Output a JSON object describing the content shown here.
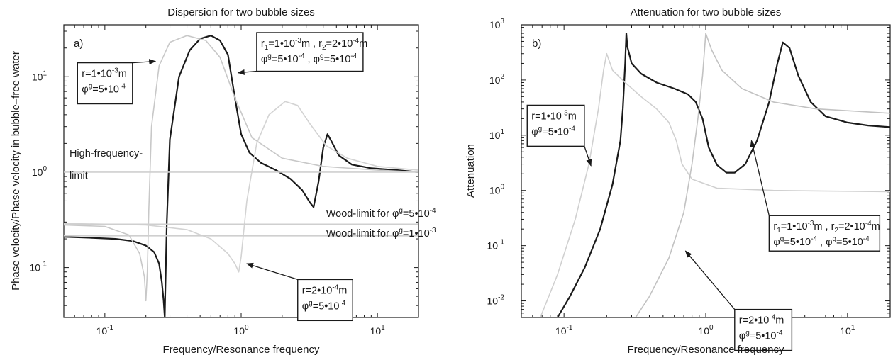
{
  "chart_data": [
    {
      "panel_label": "a)",
      "type": "line",
      "title": "Dispersion for two bubble sizes",
      "xlabel": "Frequency/Resonance frequency",
      "ylabel": "Phase velocity/Phase velocity in bubble–free water",
      "xscale": "log",
      "yscale": "log",
      "xlim": [
        0.05,
        20
      ],
      "ylim": [
        0.03,
        35
      ],
      "x_ticks": [
        {
          "v": 0.1,
          "b": "10",
          "e": "-1"
        },
        {
          "v": 1,
          "b": "10",
          "e": "0"
        },
        {
          "v": 10,
          "b": "10",
          "e": "1"
        }
      ],
      "y_ticks": [
        {
          "v": 0.1,
          "b": "10",
          "e": "-1"
        },
        {
          "v": 1,
          "b": "10",
          "e": "0"
        },
        {
          "v": 10,
          "b": "10",
          "e": "1"
        }
      ],
      "series": [
        {
          "color": "#1a1a1a",
          "points": [
            [
              0.05,
              0.21
            ],
            [
              0.08,
              0.205
            ],
            [
              0.12,
              0.2
            ],
            [
              0.16,
              0.19
            ],
            [
              0.2,
              0.17
            ],
            [
              0.23,
              0.145
            ],
            [
              0.25,
              0.11
            ],
            [
              0.262,
              0.07
            ],
            [
              0.27,
              0.045
            ],
            [
              0.275,
              0.03
            ],
            [
              0.277,
              0.05
            ],
            [
              0.285,
              0.3
            ],
            [
              0.3,
              2.2
            ],
            [
              0.35,
              10
            ],
            [
              0.42,
              19
            ],
            [
              0.5,
              25
            ],
            [
              0.6,
              27
            ],
            [
              0.7,
              24
            ],
            [
              0.8,
              17
            ],
            [
              0.9,
              6
            ],
            [
              1.0,
              2.5
            ],
            [
              1.15,
              1.6
            ],
            [
              1.4,
              1.25
            ],
            [
              1.8,
              1.05
            ],
            [
              2.3,
              0.85
            ],
            [
              2.8,
              0.65
            ],
            [
              3.2,
              0.48
            ],
            [
              3.4,
              0.43
            ],
            [
              3.7,
              0.8
            ],
            [
              4.0,
              1.8
            ],
            [
              4.3,
              2.5
            ],
            [
              4.6,
              2.1
            ],
            [
              5.2,
              1.5
            ],
            [
              6.5,
              1.2
            ],
            [
              9,
              1.1
            ],
            [
              14,
              1.05
            ],
            [
              20,
              1.0
            ]
          ]
        },
        {
          "color": "#c8c8c8",
          "points": [
            [
              0.05,
              0.28
            ],
            [
              0.1,
              0.27
            ],
            [
              0.15,
              0.22
            ],
            [
              0.18,
              0.14
            ],
            [
              0.195,
              0.08
            ],
            [
              0.2,
              0.045
            ],
            [
              0.205,
              0.09
            ],
            [
              0.21,
              0.4
            ],
            [
              0.22,
              3
            ],
            [
              0.25,
              13
            ],
            [
              0.3,
              23
            ],
            [
              0.4,
              27
            ],
            [
              0.55,
              24
            ],
            [
              0.7,
              16
            ],
            [
              0.9,
              6
            ],
            [
              1.2,
              2.3
            ],
            [
              2,
              1.4
            ],
            [
              4,
              1.15
            ],
            [
              10,
              1.05
            ],
            [
              20,
              1.0
            ]
          ]
        },
        {
          "color": "#d3d3d3",
          "points": [
            [
              0.05,
              0.29
            ],
            [
              0.2,
              0.28
            ],
            [
              0.4,
              0.25
            ],
            [
              0.6,
              0.2
            ],
            [
              0.8,
              0.14
            ],
            [
              0.9,
              0.11
            ],
            [
              0.96,
              0.09
            ],
            [
              1.0,
              0.13
            ],
            [
              1.1,
              0.5
            ],
            [
              1.3,
              2
            ],
            [
              1.6,
              4
            ],
            [
              2.1,
              5.5
            ],
            [
              2.6,
              5
            ],
            [
              3.2,
              3.2
            ],
            [
              4.2,
              1.9
            ],
            [
              6,
              1.4
            ],
            [
              10,
              1.15
            ],
            [
              20,
              1.05
            ]
          ]
        },
        {
          "color": "#cfcfcf",
          "points": [
            [
              0.05,
              1.0
            ],
            [
              20,
              1.0
            ]
          ]
        },
        {
          "color": "#cfcfcf",
          "points": [
            [
              0.05,
              0.285
            ],
            [
              20,
              0.285
            ]
          ]
        },
        {
          "color": "#cfcfcf",
          "points": [
            [
              0.05,
              0.215
            ],
            [
              20,
              0.215
            ]
          ]
        }
      ],
      "annotations": [
        {
          "text": "High-frequency-",
          "x": 0.055,
          "y": 1.45
        },
        {
          "text": "limit",
          "x": 0.055,
          "y": 0.85
        },
        {
          "text": "Wood-limit for φ",
          "sup": "g",
          "rest": "=5•10",
          "exp": "-4",
          "x": 4.2,
          "y": 0.34
        },
        {
          "text": "Wood-limit for φ",
          "sup": "g",
          "rest": "=1•10",
          "exp": "-3",
          "x": 4.2,
          "y": 0.21
        }
      ],
      "boxes": [
        {
          "lines": [
            [
              {
                "t": "r=1•10"
              },
              {
                "t": "-3",
                "sup": true
              },
              {
                "t": "m"
              }
            ],
            [
              {
                "t": "φ"
              },
              {
                "t": "g",
                "sup": true
              },
              {
                "t": "=5•10"
              },
              {
                "t": "-4",
                "sup": true
              }
            ]
          ],
          "x": 0.063,
          "y": 14,
          "w": 0.155,
          "h": 0.255,
          "arrow_to": [
            0.235,
            14.5
          ]
        },
        {
          "lines": [
            [
              {
                "t": "r"
              },
              {
                "t": "1",
                "sub": true
              },
              {
                "t": "=1•10"
              },
              {
                "t": "-3",
                "sup": true
              },
              {
                "t": "m , r"
              },
              {
                "t": "2",
                "sub": true
              },
              {
                "t": "=2•10"
              },
              {
                "t": "-4",
                "sup": true
              },
              {
                "t": "m"
              }
            ],
            [
              {
                "t": "φ"
              },
              {
                "t": "g",
                "sup": true
              },
              {
                "t": "=5•10"
              },
              {
                "t": "-4",
                "sup": true
              },
              {
                "t": "   , φ"
              },
              {
                "t": "g",
                "sup": true
              },
              {
                "t": "=5•10"
              },
              {
                "t": "-4",
                "sup": true
              }
            ]
          ],
          "x": 1.3,
          "y": 29,
          "w": 0.3,
          "h": 0.24,
          "arrow_to": [
            0.95,
            11
          ]
        },
        {
          "lines": [
            [
              {
                "t": "r=2•10"
              },
              {
                "t": "-4",
                "sup": true
              },
              {
                "t": "m"
              }
            ],
            [
              {
                "t": "φ"
              },
              {
                "t": "g",
                "sup": true
              },
              {
                "t": "=5•10"
              },
              {
                "t": "-4",
                "sup": true
              }
            ]
          ],
          "x": 2.6,
          "y": 0.075,
          "w": 0.155,
          "h": 0.255,
          "arrow_to": [
            1.1,
            0.11
          ]
        }
      ]
    },
    {
      "panel_label": "b)",
      "type": "line",
      "title": "Attenuation for two bubble sizes",
      "xlabel": "Frequency/Resonance frequency",
      "ylabel": "Attenuation",
      "xscale": "log",
      "yscale": "log",
      "xlim": [
        0.05,
        20
      ],
      "ylim": [
        0.005,
        1000
      ],
      "x_ticks": [
        {
          "v": 0.1,
          "b": "10",
          "e": "-1"
        },
        {
          "v": 1,
          "b": "10",
          "e": "0"
        },
        {
          "v": 10,
          "b": "10",
          "e": "1"
        }
      ],
      "y_ticks": [
        {
          "v": 0.01,
          "b": "10",
          "e": "-2"
        },
        {
          "v": 0.1,
          "b": "10",
          "e": "-1"
        },
        {
          "v": 1,
          "b": "10",
          "e": "0"
        },
        {
          "v": 10,
          "b": "10",
          "e": "1"
        },
        {
          "v": 100,
          "b": "10",
          "e": "2"
        },
        {
          "v": 1000,
          "b": "10",
          "e": "3"
        }
      ],
      "series": [
        {
          "color": "#1a1a1a",
          "points": [
            [
              0.09,
              0.005
            ],
            [
              0.11,
              0.012
            ],
            [
              0.14,
              0.04
            ],
            [
              0.18,
              0.2
            ],
            [
              0.22,
              1.3
            ],
            [
              0.25,
              8
            ],
            [
              0.26,
              30
            ],
            [
              0.27,
              200
            ],
            [
              0.275,
              700
            ],
            [
              0.28,
              400
            ],
            [
              0.3,
              200
            ],
            [
              0.35,
              130
            ],
            [
              0.45,
              90
            ],
            [
              0.6,
              70
            ],
            [
              0.75,
              55
            ],
            [
              0.85,
              40
            ],
            [
              0.95,
              20
            ],
            [
              1.05,
              6
            ],
            [
              1.2,
              2.9
            ],
            [
              1.4,
              2.1
            ],
            [
              1.6,
              2.1
            ],
            [
              1.9,
              3
            ],
            [
              2.3,
              8
            ],
            [
              2.8,
              40
            ],
            [
              3.2,
              200
            ],
            [
              3.5,
              480
            ],
            [
              3.9,
              380
            ],
            [
              4.5,
              120
            ],
            [
              5.5,
              40
            ],
            [
              7,
              22
            ],
            [
              10,
              17
            ],
            [
              14,
              15
            ],
            [
              20,
              14
            ]
          ]
        },
        {
          "color": "#d0d0d0",
          "points": [
            [
              0.068,
              0.005
            ],
            [
              0.09,
              0.03
            ],
            [
              0.12,
              0.3
            ],
            [
              0.15,
              3
            ],
            [
              0.175,
              30
            ],
            [
              0.19,
              150
            ],
            [
              0.2,
              300
            ],
            [
              0.22,
              150
            ],
            [
              0.27,
              90
            ],
            [
              0.35,
              50
            ],
            [
              0.45,
              30
            ],
            [
              0.55,
              17
            ],
            [
              0.62,
              8
            ],
            [
              0.68,
              3
            ],
            [
              0.8,
              1.6
            ],
            [
              1.2,
              1.1
            ],
            [
              3,
              1.0
            ],
            [
              20,
              0.95
            ]
          ]
        },
        {
          "color": "#c2c2c2",
          "points": [
            [
              0.32,
              0.005
            ],
            [
              0.4,
              0.012
            ],
            [
              0.55,
              0.06
            ],
            [
              0.7,
              0.4
            ],
            [
              0.8,
              3
            ],
            [
              0.88,
              20
            ],
            [
              0.95,
              120
            ],
            [
              1.0,
              700
            ],
            [
              1.1,
              350
            ],
            [
              1.3,
              150
            ],
            [
              1.8,
              70
            ],
            [
              3,
              40
            ],
            [
              6,
              30
            ],
            [
              20,
              25
            ]
          ]
        }
      ],
      "annotations": [],
      "boxes": [
        {
          "lines": [
            [
              {
                "t": "r=1•10"
              },
              {
                "t": "-3",
                "sup": true
              },
              {
                "t": "m"
              }
            ],
            [
              {
                "t": "φ"
              },
              {
                "t": "g",
                "sup": true
              },
              {
                "t": "=5•10"
              },
              {
                "t": "-4",
                "sup": true
              }
            ]
          ],
          "x": 0.055,
          "y": 35,
          "w": 0.155,
          "h": 0.255,
          "arrow_to": [
            0.155,
            2.8
          ]
        },
        {
          "lines": [
            [
              {
                "t": "r"
              },
              {
                "t": "1",
                "sub": true
              },
              {
                "t": "=1•10"
              },
              {
                "t": "-3",
                "sup": true
              },
              {
                "t": "m , r"
              },
              {
                "t": "2",
                "sub": true
              },
              {
                "t": "=2•10"
              },
              {
                "t": "-4",
                "sup": true
              },
              {
                "t": "m"
              }
            ],
            [
              {
                "t": "φ"
              },
              {
                "t": "g",
                "sup": true
              },
              {
                "t": "=5•10"
              },
              {
                "t": "-4",
                "sup": true
              },
              {
                "t": "   , φ"
              },
              {
                "t": "g",
                "sup": true
              },
              {
                "t": "=5•10"
              },
              {
                "t": "-4",
                "sup": true
              }
            ]
          ],
          "x": 2.8,
          "y": 0.35,
          "w": 0.3,
          "h": 0.22,
          "arrow_to": [
            2.1,
            8
          ]
        },
        {
          "lines": [
            [
              {
                "t": "r=2•10"
              },
              {
                "t": "-4",
                "sup": true
              },
              {
                "t": "m"
              }
            ],
            [
              {
                "t": "φ"
              },
              {
                "t": "g",
                "sup": true
              },
              {
                "t": "=5•10"
              },
              {
                "t": "-4",
                "sup": true
              }
            ]
          ],
          "x": 1.6,
          "y": 0.007,
          "w": 0.155,
          "h": 0.255,
          "arrow_to": [
            0.72,
            0.08
          ]
        }
      ]
    }
  ]
}
